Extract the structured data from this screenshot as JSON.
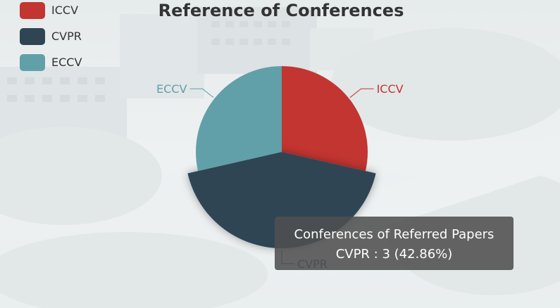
{
  "chart_data": {
    "type": "pie",
    "title": "Reference of Conferences",
    "series_name": "Conferences of Referred Papers",
    "slices": [
      {
        "name": "ICCV",
        "value": 2,
        "color": "#c23531"
      },
      {
        "name": "CVPR",
        "value": 3,
        "color": "#2f4554"
      },
      {
        "name": "ECCV",
        "value": 2,
        "color": "#61a0a8"
      }
    ],
    "legend_position": "top-left",
    "highlighted": "CVPR"
  },
  "tooltip": {
    "line1": "Conferences of Referred Papers",
    "line2": "CVPR : 3 (42.86%)"
  }
}
